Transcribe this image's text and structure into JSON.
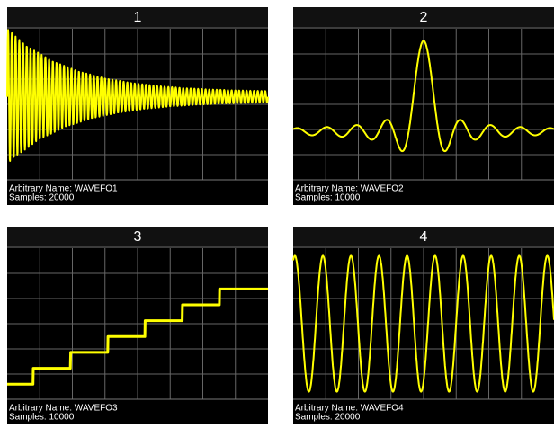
{
  "panels": [
    {
      "title": "1",
      "name": "Arbitrary Name: WAVEFO1",
      "samples": "Samples: 20000"
    },
    {
      "title": "2",
      "name": "Arbitrary Name: WAVEFO2",
      "samples": "Samples: 10000"
    },
    {
      "title": "3",
      "name": "Arbitrary Name: WAVEFO3",
      "samples": "Samples: 10000"
    },
    {
      "title": "4",
      "name": "Arbitrary Name: WAVEFO4",
      "samples": "Samples: 20000"
    }
  ]
}
